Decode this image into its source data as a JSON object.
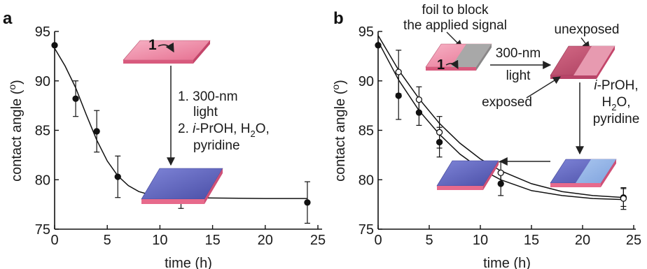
{
  "panels": [
    {
      "label": "a",
      "xlabel": "time (h)",
      "ylabel": "contact angle (o)",
      "annotations": {
        "reagent": "1",
        "step1_a": "1. 300-nm",
        "step1_b": "light",
        "step2_a": "2. ",
        "step2_i": "i",
        "step2_b": "-PrOH, H",
        "step2_sub": "2",
        "step2_c": "O,",
        "step2_d": "pyridine"
      }
    },
    {
      "label": "b",
      "xlabel": "time (h)",
      "ylabel": "contact angle (o)",
      "annotations": {
        "foil_a": "foil to block",
        "foil_b": "the applied signal",
        "unexposed": "unexposed",
        "exposed": "exposed",
        "reagent": "1",
        "light_a": "300-nm",
        "light_b": "light",
        "rinse_i": "i",
        "rinse_a": "-PrOH,",
        "rinse_b1": "H",
        "rinse_sub": "2",
        "rinse_b2": "O,",
        "rinse_c": "pyridine"
      }
    }
  ],
  "chart_data": [
    {
      "type": "scatter",
      "panel": "a",
      "xlabel": "time (h)",
      "ylabel": "contact angle (o)",
      "xlim": [
        0,
        25
      ],
      "ylim": [
        75,
        95
      ],
      "xticks": [
        0,
        5,
        10,
        15,
        20,
        25
      ],
      "yticks": [
        75,
        80,
        85,
        90,
        95
      ],
      "grid": false,
      "series": [
        {
          "marker": "filled-circle",
          "color": "#111111",
          "x": [
            0,
            2,
            4,
            6,
            12,
            24
          ],
          "y": [
            93.6,
            88.2,
            84.9,
            80.3,
            78.4,
            77.7
          ],
          "err": [
            0,
            1.8,
            2.1,
            2.1,
            1.3,
            2.1
          ],
          "fit": [
            [
              0,
              93.3
            ],
            [
              1,
              91.5
            ],
            [
              2,
              89.3
            ],
            [
              3,
              86.6
            ],
            [
              4,
              84.0
            ],
            [
              5,
              81.9
            ],
            [
              6,
              80.4
            ],
            [
              7,
              79.4
            ],
            [
              8,
              78.8
            ],
            [
              9,
              78.5
            ],
            [
              10,
              78.3
            ],
            [
              12,
              78.2
            ],
            [
              15,
              78.15
            ],
            [
              20,
              78.1
            ],
            [
              24,
              78.1
            ]
          ]
        }
      ]
    },
    {
      "type": "scatter",
      "panel": "b",
      "xlabel": "time (h)",
      "ylabel": "contact angle (o)",
      "xlim": [
        0,
        25
      ],
      "ylim": [
        75,
        95
      ],
      "xticks": [
        0,
        5,
        10,
        15,
        20,
        25
      ],
      "yticks": [
        75,
        80,
        85,
        90,
        95
      ],
      "grid": false,
      "series": [
        {
          "marker": "filled-circle",
          "color": "#111111",
          "x": [
            0,
            2,
            4,
            6,
            12,
            24
          ],
          "y": [
            93.6,
            88.5,
            86.8,
            83.8,
            79.6,
            78.2
          ],
          "err": [
            0,
            2.4,
            1.3,
            1.5,
            1.2,
            0.9
          ],
          "fit": [
            [
              0,
              94.0
            ],
            [
              2,
              90.1
            ],
            [
              4,
              87.0
            ],
            [
              6,
              84.6
            ],
            [
              8,
              82.6
            ],
            [
              10,
              81.1
            ],
            [
              12,
              80.0
            ],
            [
              15,
              78.9
            ],
            [
              18,
              78.4
            ],
            [
              21,
              78.1
            ],
            [
              24,
              78.0
            ]
          ]
        },
        {
          "marker": "open-circle",
          "color": "#111111",
          "x": [
            2,
            4,
            6,
            12,
            24
          ],
          "y": [
            90.9,
            88.1,
            84.8,
            80.7,
            78.1
          ],
          "err": [
            2.2,
            1.3,
            1.6,
            1.1,
            1.1
          ],
          "fit": [
            [
              0,
              94.6
            ],
            [
              2,
              91.1
            ],
            [
              4,
              88.2
            ],
            [
              6,
              85.7
            ],
            [
              8,
              83.7
            ],
            [
              10,
              82.1
            ],
            [
              12,
              80.9
            ],
            [
              15,
              79.6
            ],
            [
              18,
              78.8
            ],
            [
              21,
              78.4
            ],
            [
              24,
              78.2
            ]
          ]
        }
      ]
    }
  ]
}
